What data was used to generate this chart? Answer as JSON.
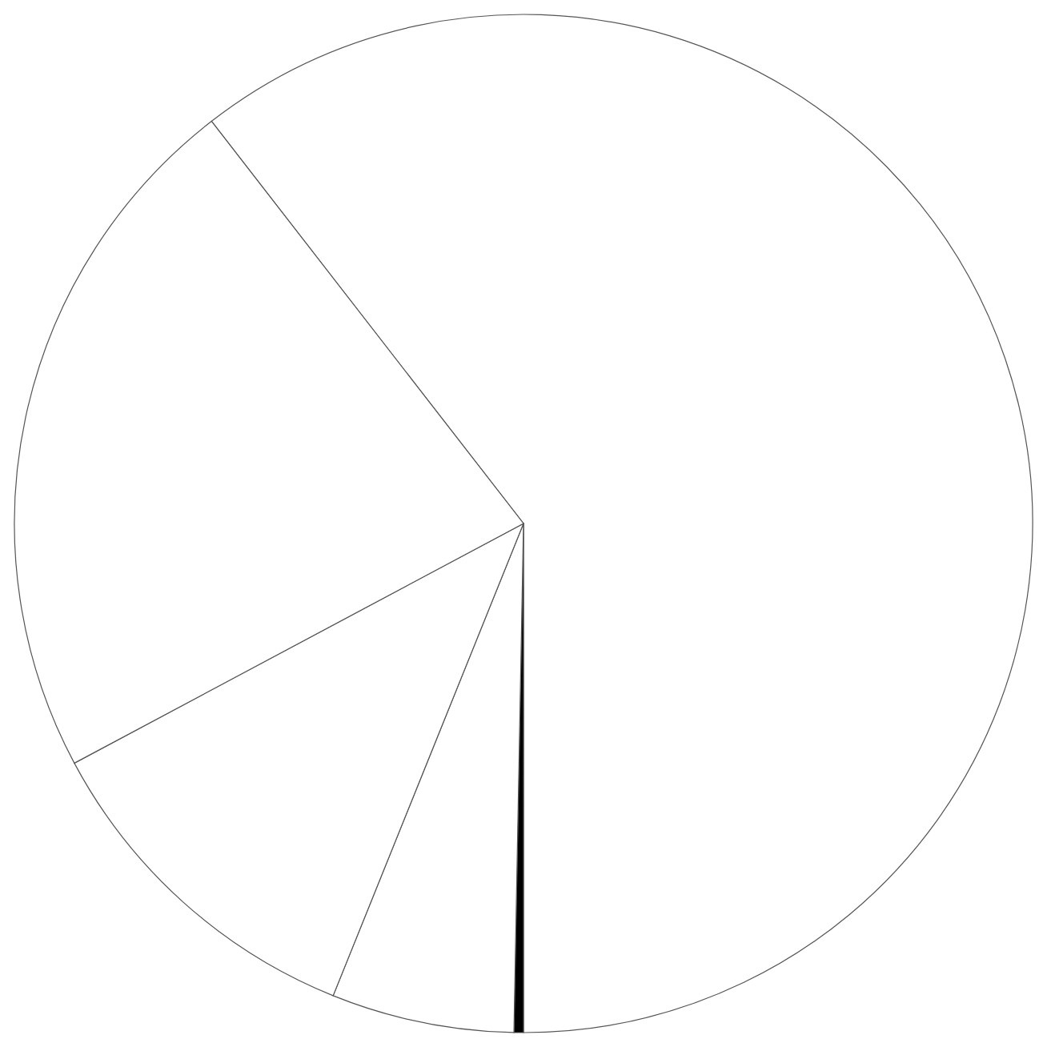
{
  "chart_data": {
    "type": "pie",
    "categories": [
      null,
      null,
      null,
      null,
      null
    ],
    "values": [
      60.5,
      0.3,
      5.8,
      11.1,
      22.3
    ],
    "colors": [
      "#ffffff",
      "#000000",
      "#ffffff",
      "#ffffff",
      "#ffffff"
    ],
    "legend": false
  }
}
